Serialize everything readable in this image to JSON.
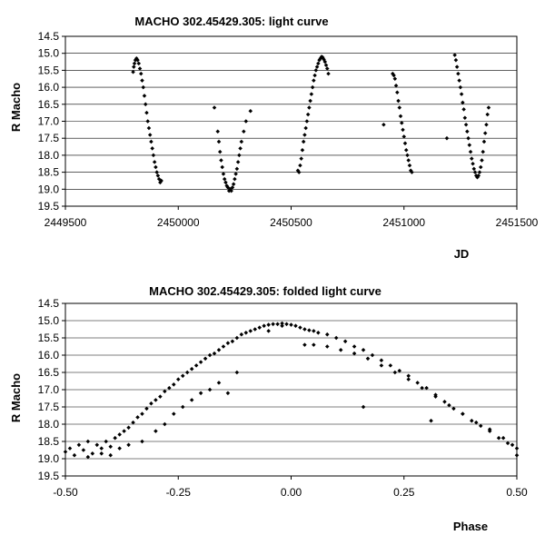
{
  "chart_data": [
    {
      "type": "scatter",
      "title": "MACHO 302.45429.305: light curve",
      "xlabel": "JD",
      "ylabel": "R Macho",
      "xlim": [
        2449500,
        2451500
      ],
      "ylim": [
        19.5,
        14.5
      ],
      "y_inverted": true,
      "grid": "horizontal",
      "xticks": [
        2449500,
        2450000,
        2450500,
        2451000,
        2451500
      ],
      "xtick_labels": [
        "2449500",
        "2450000",
        "2450500",
        "2451000",
        "2451500"
      ],
      "yticks": [
        14.5,
        15.0,
        15.5,
        16.0,
        16.5,
        17.0,
        17.5,
        18.0,
        18.5,
        19.0,
        19.5
      ],
      "ytick_labels": [
        "14.5",
        "15.0",
        "15.5",
        "16.0",
        "16.5",
        "17.0",
        "17.5",
        "18.0",
        "18.5",
        "19.0",
        "19.5"
      ],
      "series": [
        {
          "marker_color": "#000000",
          "points": [
            [
              2449800,
              15.55
            ],
            [
              2449803,
              15.4
            ],
            [
              2449806,
              15.3
            ],
            [
              2449810,
              15.2
            ],
            [
              2449815,
              15.15
            ],
            [
              2449820,
              15.2
            ],
            [
              2449825,
              15.3
            ],
            [
              2449830,
              15.45
            ],
            [
              2449835,
              15.6
            ],
            [
              2449840,
              15.8
            ],
            [
              2449845,
              16.0
            ],
            [
              2449850,
              16.25
            ],
            [
              2449855,
              16.5
            ],
            [
              2449860,
              16.75
            ],
            [
              2449865,
              17.0
            ],
            [
              2449870,
              17.2
            ],
            [
              2449875,
              17.4
            ],
            [
              2449880,
              17.6
            ],
            [
              2449885,
              17.8
            ],
            [
              2449890,
              18.0
            ],
            [
              2449895,
              18.2
            ],
            [
              2449900,
              18.35
            ],
            [
              2449905,
              18.5
            ],
            [
              2449910,
              18.6
            ],
            [
              2449915,
              18.7
            ],
            [
              2449920,
              18.8
            ],
            [
              2449925,
              18.75
            ],
            [
              2450160,
              16.6
            ],
            [
              2450175,
              17.3
            ],
            [
              2450180,
              17.6
            ],
            [
              2450185,
              17.9
            ],
            [
              2450190,
              18.15
            ],
            [
              2450195,
              18.35
            ],
            [
              2450200,
              18.55
            ],
            [
              2450205,
              18.7
            ],
            [
              2450210,
              18.8
            ],
            [
              2450215,
              18.9
            ],
            [
              2450220,
              18.95
            ],
            [
              2450225,
              19.05
            ],
            [
              2450230,
              19.0
            ],
            [
              2450235,
              19.05
            ],
            [
              2450240,
              18.95
            ],
            [
              2450245,
              18.85
            ],
            [
              2450250,
              18.7
            ],
            [
              2450255,
              18.55
            ],
            [
              2450260,
              18.4
            ],
            [
              2450265,
              18.2
            ],
            [
              2450270,
              18.0
            ],
            [
              2450275,
              17.8
            ],
            [
              2450280,
              17.6
            ],
            [
              2450290,
              17.3
            ],
            [
              2450300,
              17.0
            ],
            [
              2450320,
              16.7
            ],
            [
              2450530,
              18.45
            ],
            [
              2450535,
              18.5
            ],
            [
              2450540,
              18.3
            ],
            [
              2450545,
              18.1
            ],
            [
              2450550,
              17.85
            ],
            [
              2450555,
              17.6
            ],
            [
              2450560,
              17.4
            ],
            [
              2450565,
              17.2
            ],
            [
              2450570,
              17.0
            ],
            [
              2450575,
              16.8
            ],
            [
              2450580,
              16.6
            ],
            [
              2450585,
              16.4
            ],
            [
              2450590,
              16.2
            ],
            [
              2450595,
              16.0
            ],
            [
              2450600,
              15.8
            ],
            [
              2450605,
              15.65
            ],
            [
              2450610,
              15.5
            ],
            [
              2450615,
              15.4
            ],
            [
              2450620,
              15.3
            ],
            [
              2450625,
              15.2
            ],
            [
              2450630,
              15.15
            ],
            [
              2450635,
              15.1
            ],
            [
              2450640,
              15.12
            ],
            [
              2450645,
              15.18
            ],
            [
              2450650,
              15.25
            ],
            [
              2450655,
              15.35
            ],
            [
              2450660,
              15.45
            ],
            [
              2450665,
              15.6
            ],
            [
              2450910,
              17.1
            ],
            [
              2450950,
              15.6
            ],
            [
              2450955,
              15.65
            ],
            [
              2450960,
              15.75
            ],
            [
              2450965,
              15.95
            ],
            [
              2450970,
              16.15
            ],
            [
              2450975,
              16.4
            ],
            [
              2450980,
              16.6
            ],
            [
              2450985,
              16.85
            ],
            [
              2450990,
              17.05
            ],
            [
              2450995,
              17.25
            ],
            [
              2451000,
              17.45
            ],
            [
              2451005,
              17.65
            ],
            [
              2451010,
              17.85
            ],
            [
              2451015,
              18.0
            ],
            [
              2451020,
              18.15
            ],
            [
              2451025,
              18.3
            ],
            [
              2451030,
              18.45
            ],
            [
              2451035,
              18.5
            ],
            [
              2451190,
              17.5
            ],
            [
              2451225,
              15.05
            ],
            [
              2451230,
              15.2
            ],
            [
              2451235,
              15.4
            ],
            [
              2451240,
              15.6
            ],
            [
              2451245,
              15.8
            ],
            [
              2451250,
              16.0
            ],
            [
              2451255,
              16.2
            ],
            [
              2451260,
              16.45
            ],
            [
              2451265,
              16.65
            ],
            [
              2451270,
              16.9
            ],
            [
              2451275,
              17.1
            ],
            [
              2451280,
              17.3
            ],
            [
              2451285,
              17.5
            ],
            [
              2451290,
              17.7
            ],
            [
              2451295,
              17.9
            ],
            [
              2451300,
              18.1
            ],
            [
              2451305,
              18.25
            ],
            [
              2451310,
              18.4
            ],
            [
              2451315,
              18.5
            ],
            [
              2451320,
              18.6
            ],
            [
              2451325,
              18.65
            ],
            [
              2451330,
              18.6
            ],
            [
              2451335,
              18.5
            ],
            [
              2451340,
              18.35
            ],
            [
              2451345,
              18.15
            ],
            [
              2451350,
              17.9
            ],
            [
              2451355,
              17.6
            ],
            [
              2451360,
              17.35
            ],
            [
              2451365,
              17.1
            ],
            [
              2451370,
              16.8
            ],
            [
              2451375,
              16.6
            ]
          ]
        }
      ]
    },
    {
      "type": "scatter",
      "title": "MACHO 302.45429.305: folded light curve",
      "xlabel": "Phase",
      "ylabel": "R Macho",
      "xlim": [
        -0.5,
        0.5
      ],
      "ylim": [
        19.5,
        14.5
      ],
      "y_inverted": true,
      "grid": "horizontal",
      "xticks": [
        -0.5,
        -0.25,
        0.0,
        0.25,
        0.5
      ],
      "xtick_labels": [
        "-0.50",
        "-0.25",
        "0.00",
        "0.25",
        "0.50"
      ],
      "yticks": [
        14.5,
        15.0,
        15.5,
        16.0,
        16.5,
        17.0,
        17.5,
        18.0,
        18.5,
        19.0,
        19.5
      ],
      "ytick_labels": [
        "14.5",
        "15.0",
        "15.5",
        "16.0",
        "16.5",
        "17.0",
        "17.5",
        "18.0",
        "18.5",
        "19.0",
        "19.5"
      ],
      "series": [
        {
          "marker_color": "#000000",
          "points": [
            [
              -0.5,
              18.8
            ],
            [
              -0.49,
              18.7
            ],
            [
              -0.48,
              18.9
            ],
            [
              -0.47,
              18.6
            ],
            [
              -0.46,
              18.75
            ],
            [
              -0.45,
              18.5
            ],
            [
              -0.44,
              18.85
            ],
            [
              -0.43,
              18.6
            ],
            [
              -0.42,
              18.7
            ],
            [
              -0.41,
              18.5
            ],
            [
              -0.4,
              18.65
            ],
            [
              -0.39,
              18.4
            ],
            [
              -0.38,
              18.3
            ],
            [
              -0.37,
              18.2
            ],
            [
              -0.36,
              18.1
            ],
            [
              -0.35,
              17.95
            ],
            [
              -0.34,
              17.8
            ],
            [
              -0.33,
              17.7
            ],
            [
              -0.32,
              17.55
            ],
            [
              -0.31,
              17.4
            ],
            [
              -0.3,
              17.3
            ],
            [
              -0.29,
              17.2
            ],
            [
              -0.28,
              17.05
            ],
            [
              -0.27,
              16.95
            ],
            [
              -0.26,
              16.85
            ],
            [
              -0.25,
              16.7
            ],
            [
              -0.24,
              16.6
            ],
            [
              -0.23,
              16.5
            ],
            [
              -0.22,
              16.4
            ],
            [
              -0.21,
              16.3
            ],
            [
              -0.2,
              16.2
            ],
            [
              -0.19,
              16.1
            ],
            [
              -0.18,
              16.0
            ],
            [
              -0.17,
              15.95
            ],
            [
              -0.16,
              15.85
            ],
            [
              -0.15,
              15.75
            ],
            [
              -0.14,
              15.65
            ],
            [
              -0.13,
              15.6
            ],
            [
              -0.12,
              15.5
            ],
            [
              -0.11,
              15.4
            ],
            [
              -0.1,
              15.35
            ],
            [
              -0.09,
              15.3
            ],
            [
              -0.08,
              15.25
            ],
            [
              -0.07,
              15.2
            ],
            [
              -0.06,
              15.15
            ],
            [
              -0.05,
              15.12
            ],
            [
              -0.04,
              15.1
            ],
            [
              -0.03,
              15.1
            ],
            [
              -0.02,
              15.08
            ],
            [
              -0.01,
              15.1
            ],
            [
              0.0,
              15.12
            ],
            [
              -0.45,
              18.95
            ],
            [
              -0.42,
              18.85
            ],
            [
              -0.4,
              18.9
            ],
            [
              -0.38,
              18.7
            ],
            [
              -0.36,
              18.6
            ],
            [
              -0.33,
              18.5
            ],
            [
              -0.3,
              18.2
            ],
            [
              -0.28,
              18.0
            ],
            [
              -0.26,
              17.7
            ],
            [
              -0.24,
              17.5
            ],
            [
              -0.22,
              17.3
            ],
            [
              -0.2,
              17.1
            ],
            [
              -0.18,
              17.0
            ],
            [
              -0.16,
              16.8
            ],
            [
              -0.12,
              16.5
            ],
            [
              -0.14,
              17.1
            ],
            [
              -0.05,
              15.3
            ],
            [
              -0.02,
              15.15
            ],
            [
              0.01,
              15.15
            ],
            [
              0.02,
              15.2
            ],
            [
              0.03,
              15.25
            ],
            [
              0.04,
              15.28
            ],
            [
              0.05,
              15.3
            ],
            [
              0.06,
              15.35
            ],
            [
              0.08,
              15.4
            ],
            [
              0.1,
              15.5
            ],
            [
              0.12,
              15.6
            ],
            [
              0.14,
              15.75
            ],
            [
              0.16,
              15.85
            ],
            [
              0.18,
              16.0
            ],
            [
              0.2,
              16.15
            ],
            [
              0.22,
              16.3
            ],
            [
              0.24,
              16.45
            ],
            [
              0.26,
              16.6
            ],
            [
              0.28,
              16.8
            ],
            [
              0.3,
              16.95
            ],
            [
              0.32,
              17.15
            ],
            [
              0.34,
              17.35
            ],
            [
              0.36,
              17.55
            ],
            [
              0.38,
              17.7
            ],
            [
              0.4,
              17.9
            ],
            [
              0.42,
              18.05
            ],
            [
              0.44,
              18.2
            ],
            [
              0.46,
              18.4
            ],
            [
              0.48,
              18.55
            ],
            [
              0.5,
              18.7
            ],
            [
              0.03,
              15.7
            ],
            [
              0.05,
              15.7
            ],
            [
              0.08,
              15.75
            ],
            [
              0.11,
              15.85
            ],
            [
              0.14,
              15.95
            ],
            [
              0.17,
              16.1
            ],
            [
              0.2,
              16.3
            ],
            [
              0.23,
              16.5
            ],
            [
              0.26,
              16.7
            ],
            [
              0.29,
              16.95
            ],
            [
              0.32,
              17.2
            ],
            [
              0.35,
              17.45
            ],
            [
              0.38,
              17.7
            ],
            [
              0.41,
              17.95
            ],
            [
              0.44,
              18.15
            ],
            [
              0.47,
              18.4
            ],
            [
              0.49,
              18.6
            ],
            [
              0.5,
              18.9
            ],
            [
              0.16,
              17.5
            ],
            [
              0.31,
              17.9
            ]
          ]
        }
      ]
    }
  ]
}
